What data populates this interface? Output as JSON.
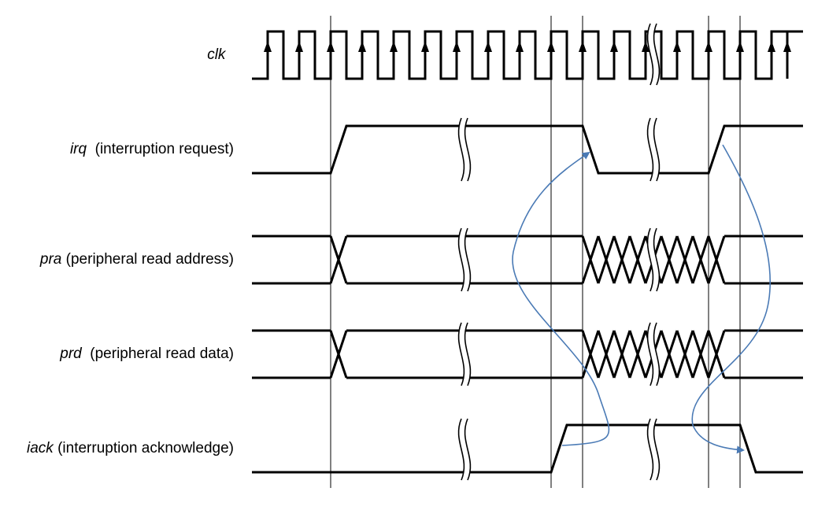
{
  "signals": [
    {
      "id": "clk",
      "name": "clk",
      "description": ""
    },
    {
      "id": "irq",
      "name": "irq",
      "description": "(interruption request)"
    },
    {
      "id": "pra",
      "name": "pra",
      "description": "(peripheral read address)"
    },
    {
      "id": "prd",
      "name": "prd",
      "description": "(peripheral read data)"
    },
    {
      "id": "iack",
      "name": "iack",
      "description": "(interruption acknowledge)"
    }
  ],
  "colors": {
    "waveform": "#000000",
    "guide_line": "#000000",
    "arrow": "#4a7ab5"
  }
}
